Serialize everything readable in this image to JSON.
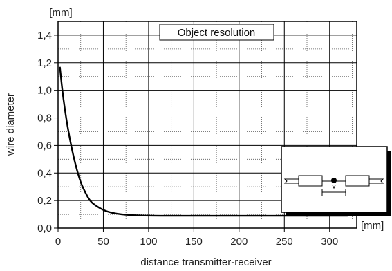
{
  "chart_data": {
    "type": "line",
    "title": "Object resolution",
    "xlabel": "distance transmitter-receiver",
    "ylabel": "wire diameter",
    "x_unit": "[mm]",
    "y_unit": "[mm]",
    "xlim": [
      0,
      330
    ],
    "ylim": [
      0.0,
      1.5
    ],
    "x_ticks": [
      0,
      50,
      100,
      150,
      200,
      250,
      300
    ],
    "x_tick_labels": [
      "0",
      "50",
      "100",
      "150",
      "200",
      "250",
      "300"
    ],
    "y_ticks": [
      0.0,
      0.2,
      0.4,
      0.6,
      0.8,
      1.0,
      1.2,
      1.4
    ],
    "y_tick_labels": [
      "0,0",
      "0,2",
      "0,4",
      "0,6",
      "0,8",
      "1,0",
      "1,2",
      "1,4"
    ],
    "grid": true,
    "series": [
      {
        "x": [
          2,
          5,
          10,
          15,
          20,
          25,
          30,
          35,
          40,
          50,
          60,
          70,
          80,
          100,
          150,
          200,
          250,
          300,
          320
        ],
        "y": [
          1.17,
          0.98,
          0.75,
          0.58,
          0.44,
          0.33,
          0.26,
          0.2,
          0.17,
          0.13,
          0.11,
          0.1,
          0.095,
          0.09,
          0.09,
          0.09,
          0.09,
          0.09,
          0.09
        ]
      }
    ],
    "inset": {
      "label": "x",
      "icon": "transmitter-receiver-schematic"
    }
  }
}
